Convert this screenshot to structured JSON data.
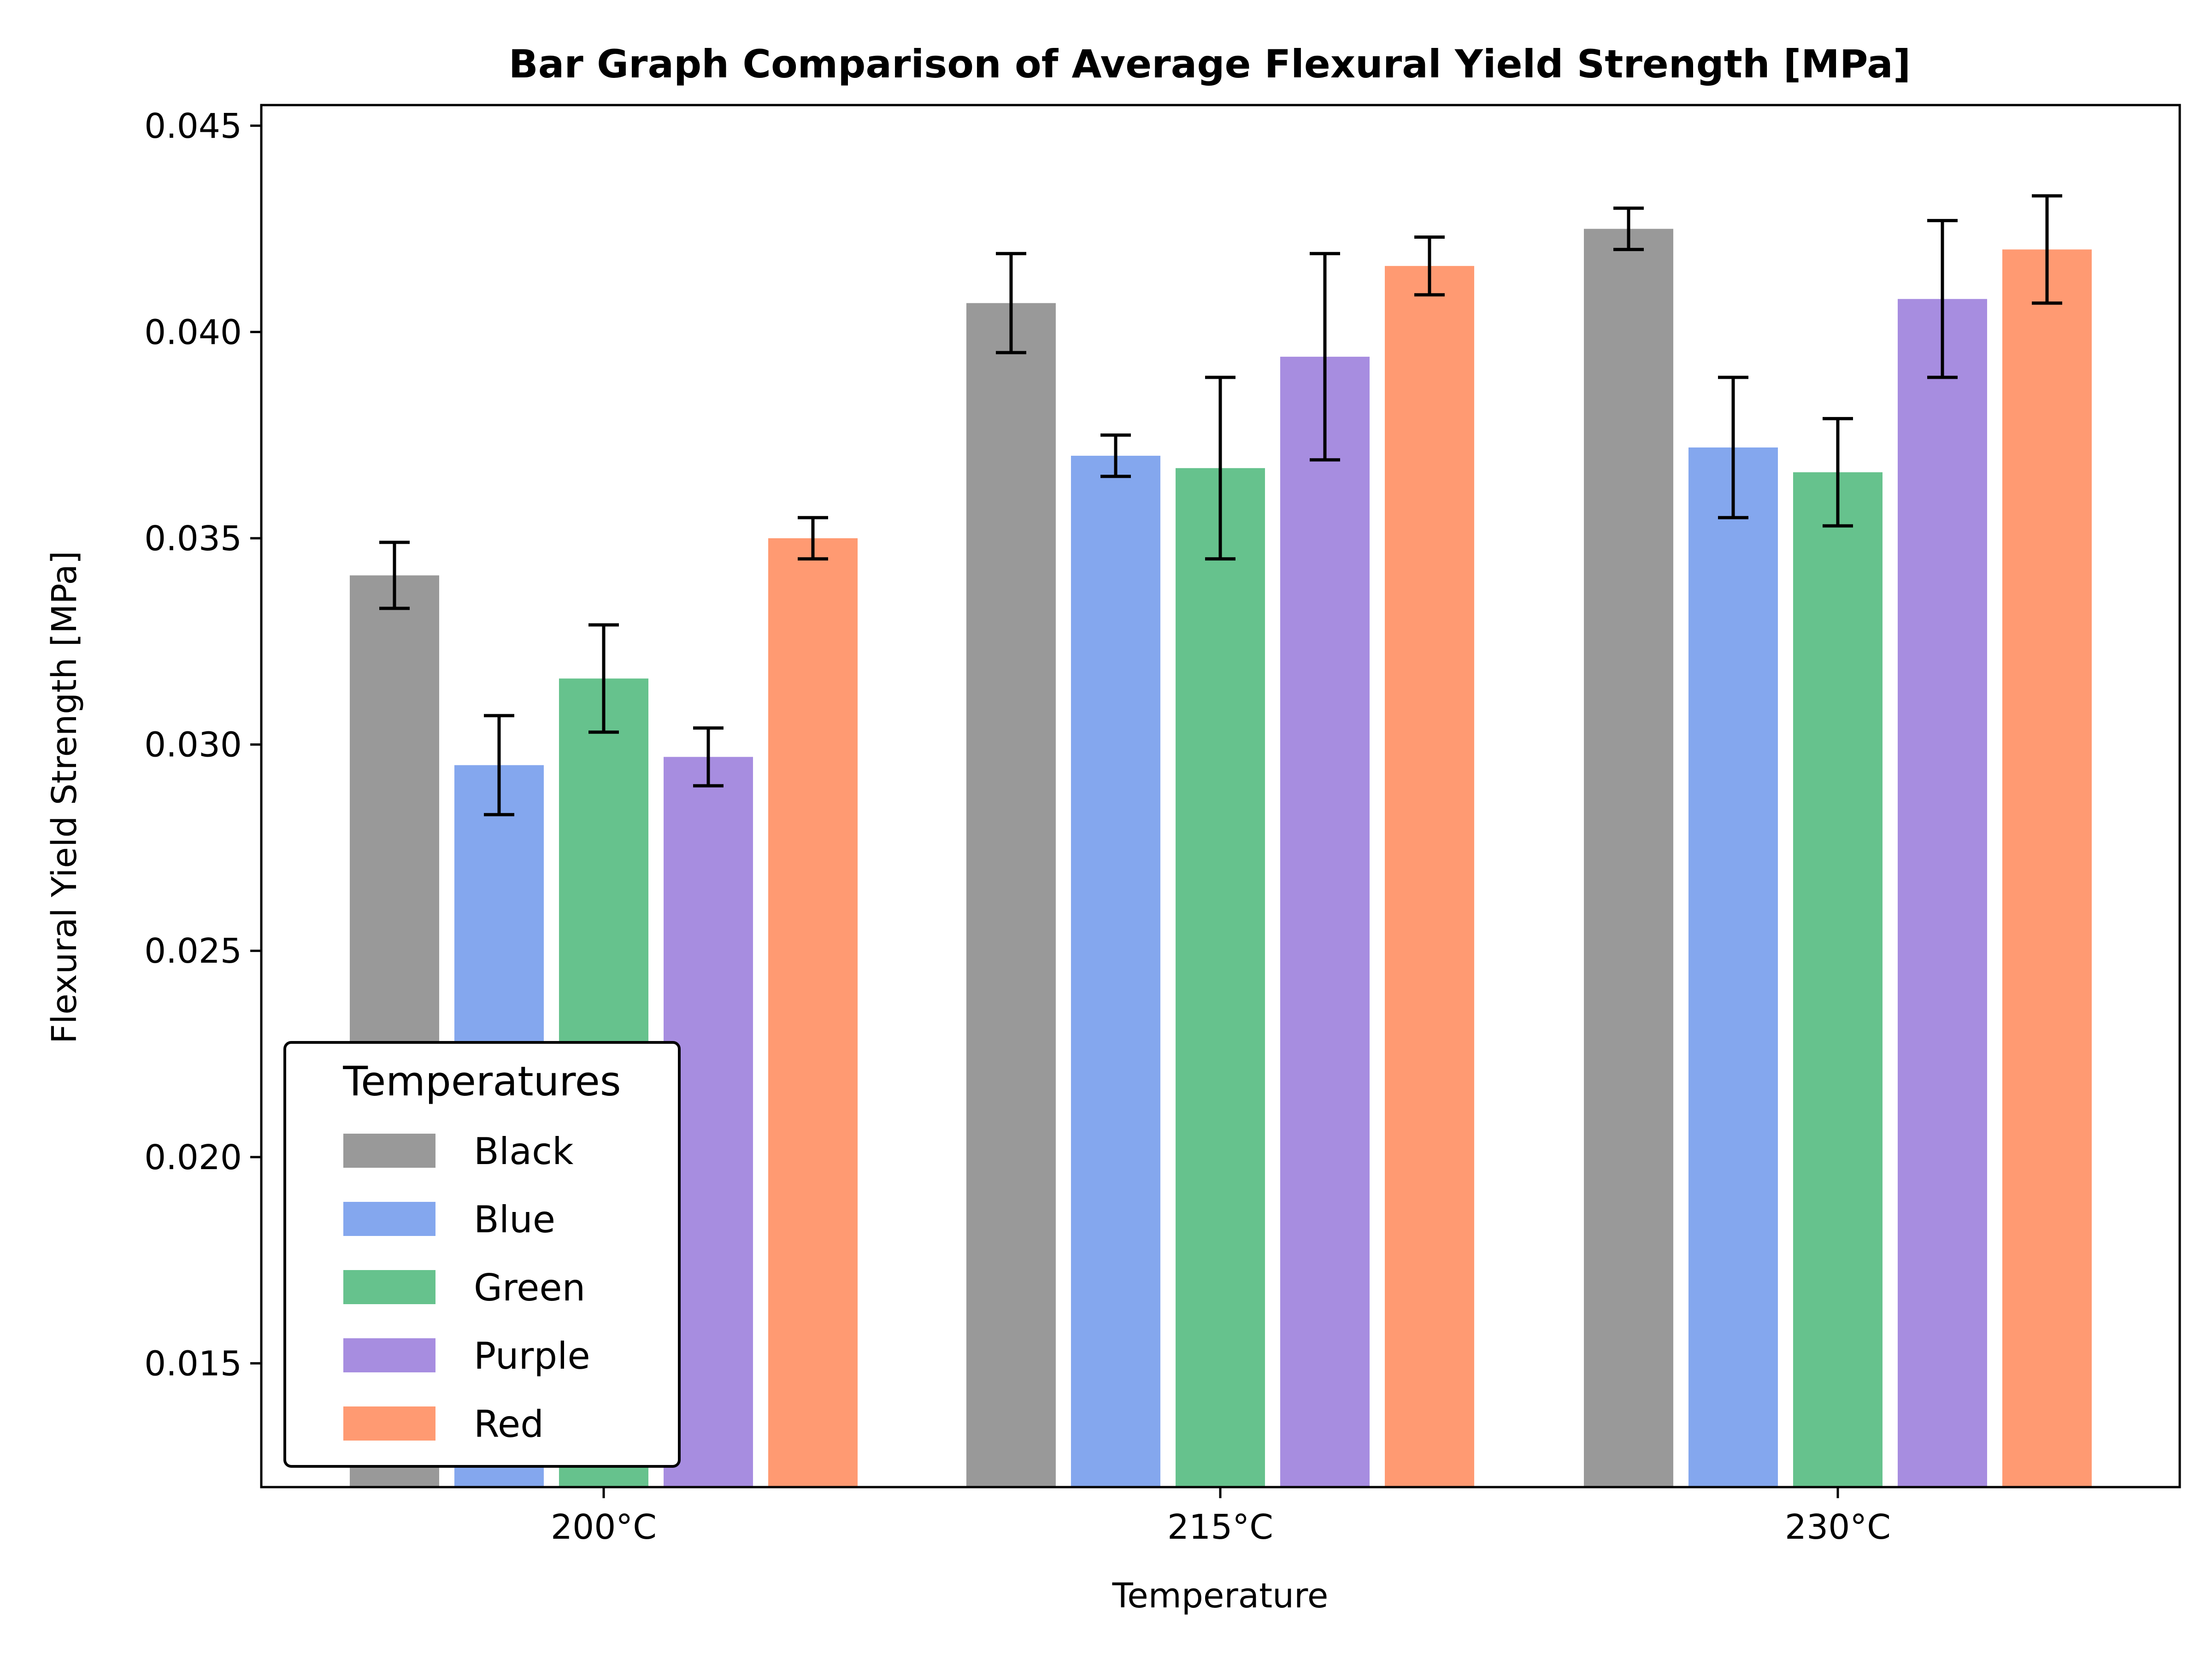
{
  "chart_data": {
    "type": "bar",
    "title": "Bar Graph Comparison of Average Flexural Yield Strength [MPa]",
    "xlabel": "Temperature",
    "ylabel": "Flexural Yield Strength [MPa]",
    "categories": [
      "200°C",
      "215°C",
      "230°C"
    ],
    "ylim": [
      0.012,
      0.0455
    ],
    "yticks": [
      0.015,
      0.02,
      0.025,
      0.03,
      0.035,
      0.04,
      0.045
    ],
    "ytick_labels": [
      "0.015",
      "0.020",
      "0.025",
      "0.030",
      "0.035",
      "0.040",
      "0.045"
    ],
    "grid": false,
    "legend": {
      "title": "Temperatures",
      "placement": "lower-left"
    },
    "series": [
      {
        "name": "Black",
        "color": "#999999",
        "values": [
          0.0341,
          0.0407,
          0.0425
        ],
        "errors": [
          0.0008,
          0.0012,
          0.0005
        ]
      },
      {
        "name": "Blue",
        "color": "#84a7ee",
        "values": [
          0.0295,
          0.037,
          0.0372
        ],
        "errors": [
          0.0012,
          0.0005,
          0.0017
        ]
      },
      {
        "name": "Green",
        "color": "#66c28d",
        "values": [
          0.0316,
          0.0367,
          0.0366
        ],
        "errors": [
          0.0013,
          0.0022,
          0.0013
        ]
      },
      {
        "name": "Purple",
        "color": "#a78de0",
        "values": [
          0.0297,
          0.0394,
          0.0408
        ],
        "errors": [
          0.0007,
          0.0025,
          0.0019
        ]
      },
      {
        "name": "Red",
        "color": "#ff9a72",
        "values": [
          0.035,
          0.0416,
          0.042
        ],
        "errors": [
          0.0005,
          0.0007,
          0.0013
        ]
      }
    ]
  }
}
